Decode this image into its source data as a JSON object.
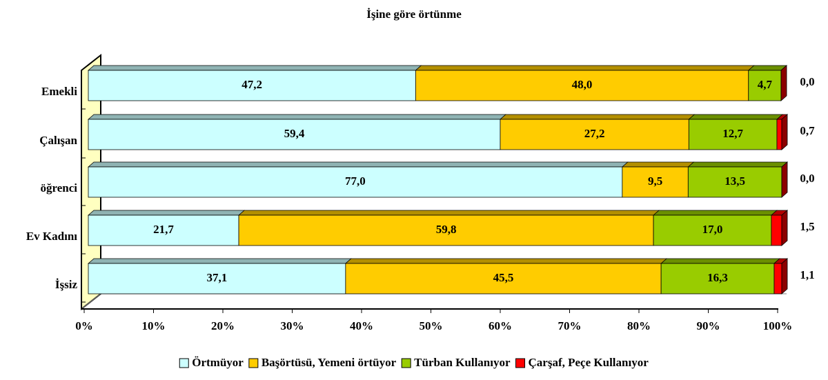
{
  "chart_data": {
    "type": "bar",
    "orientation": "horizontal",
    "stacked": "percent",
    "title": "İşine göre örtünme",
    "categories": [
      "Emekli",
      "Çalışan",
      "öğrenci",
      "Ev Kadını",
      "İşsiz"
    ],
    "series": [
      {
        "name": "Örtmüyor",
        "color": "#ccffff",
        "values": [
          47.2,
          59.4,
          77.0,
          21.7,
          37.1
        ],
        "value_labels": [
          "47,2",
          "59,4",
          "77,0",
          "21,7",
          "37,1"
        ]
      },
      {
        "name": "Başörtüsü, Yemeni örtüyor",
        "color": "#ffcc00",
        "values": [
          48.0,
          27.2,
          9.5,
          59.8,
          45.5
        ],
        "value_labels": [
          "48,0",
          "27,2",
          "9,5",
          "59,8",
          "45,5"
        ]
      },
      {
        "name": "Türban Kullanıyor",
        "color": "#99cc00",
        "values": [
          4.7,
          12.7,
          13.5,
          17.0,
          16.3
        ],
        "value_labels": [
          "4,7",
          "12,7",
          "13,5",
          "17,0",
          "16,3"
        ]
      },
      {
        "name": "Çarşaf, Peçe Kullanıyor",
        "color": "#ff0000",
        "values": [
          0.0,
          0.7,
          0.0,
          1.5,
          1.1
        ],
        "value_labels": [
          "0,0",
          "0,7",
          "0,0",
          "1,5",
          "1,1"
        ]
      }
    ],
    "xlim": [
      0,
      100
    ],
    "xticks": [
      {
        "value": 0,
        "label": "0%"
      },
      {
        "value": 10,
        "label": "10%"
      },
      {
        "value": 20,
        "label": "20%"
      },
      {
        "value": 30,
        "label": "30%"
      },
      {
        "value": 40,
        "label": "40%"
      },
      {
        "value": 50,
        "label": "50%"
      },
      {
        "value": 60,
        "label": "60%"
      },
      {
        "value": 70,
        "label": "70%"
      },
      {
        "value": 80,
        "label": "80%"
      },
      {
        "value": 90,
        "label": "90%"
      },
      {
        "value": 100,
        "label": "100%"
      }
    ],
    "legend": "bottom"
  }
}
